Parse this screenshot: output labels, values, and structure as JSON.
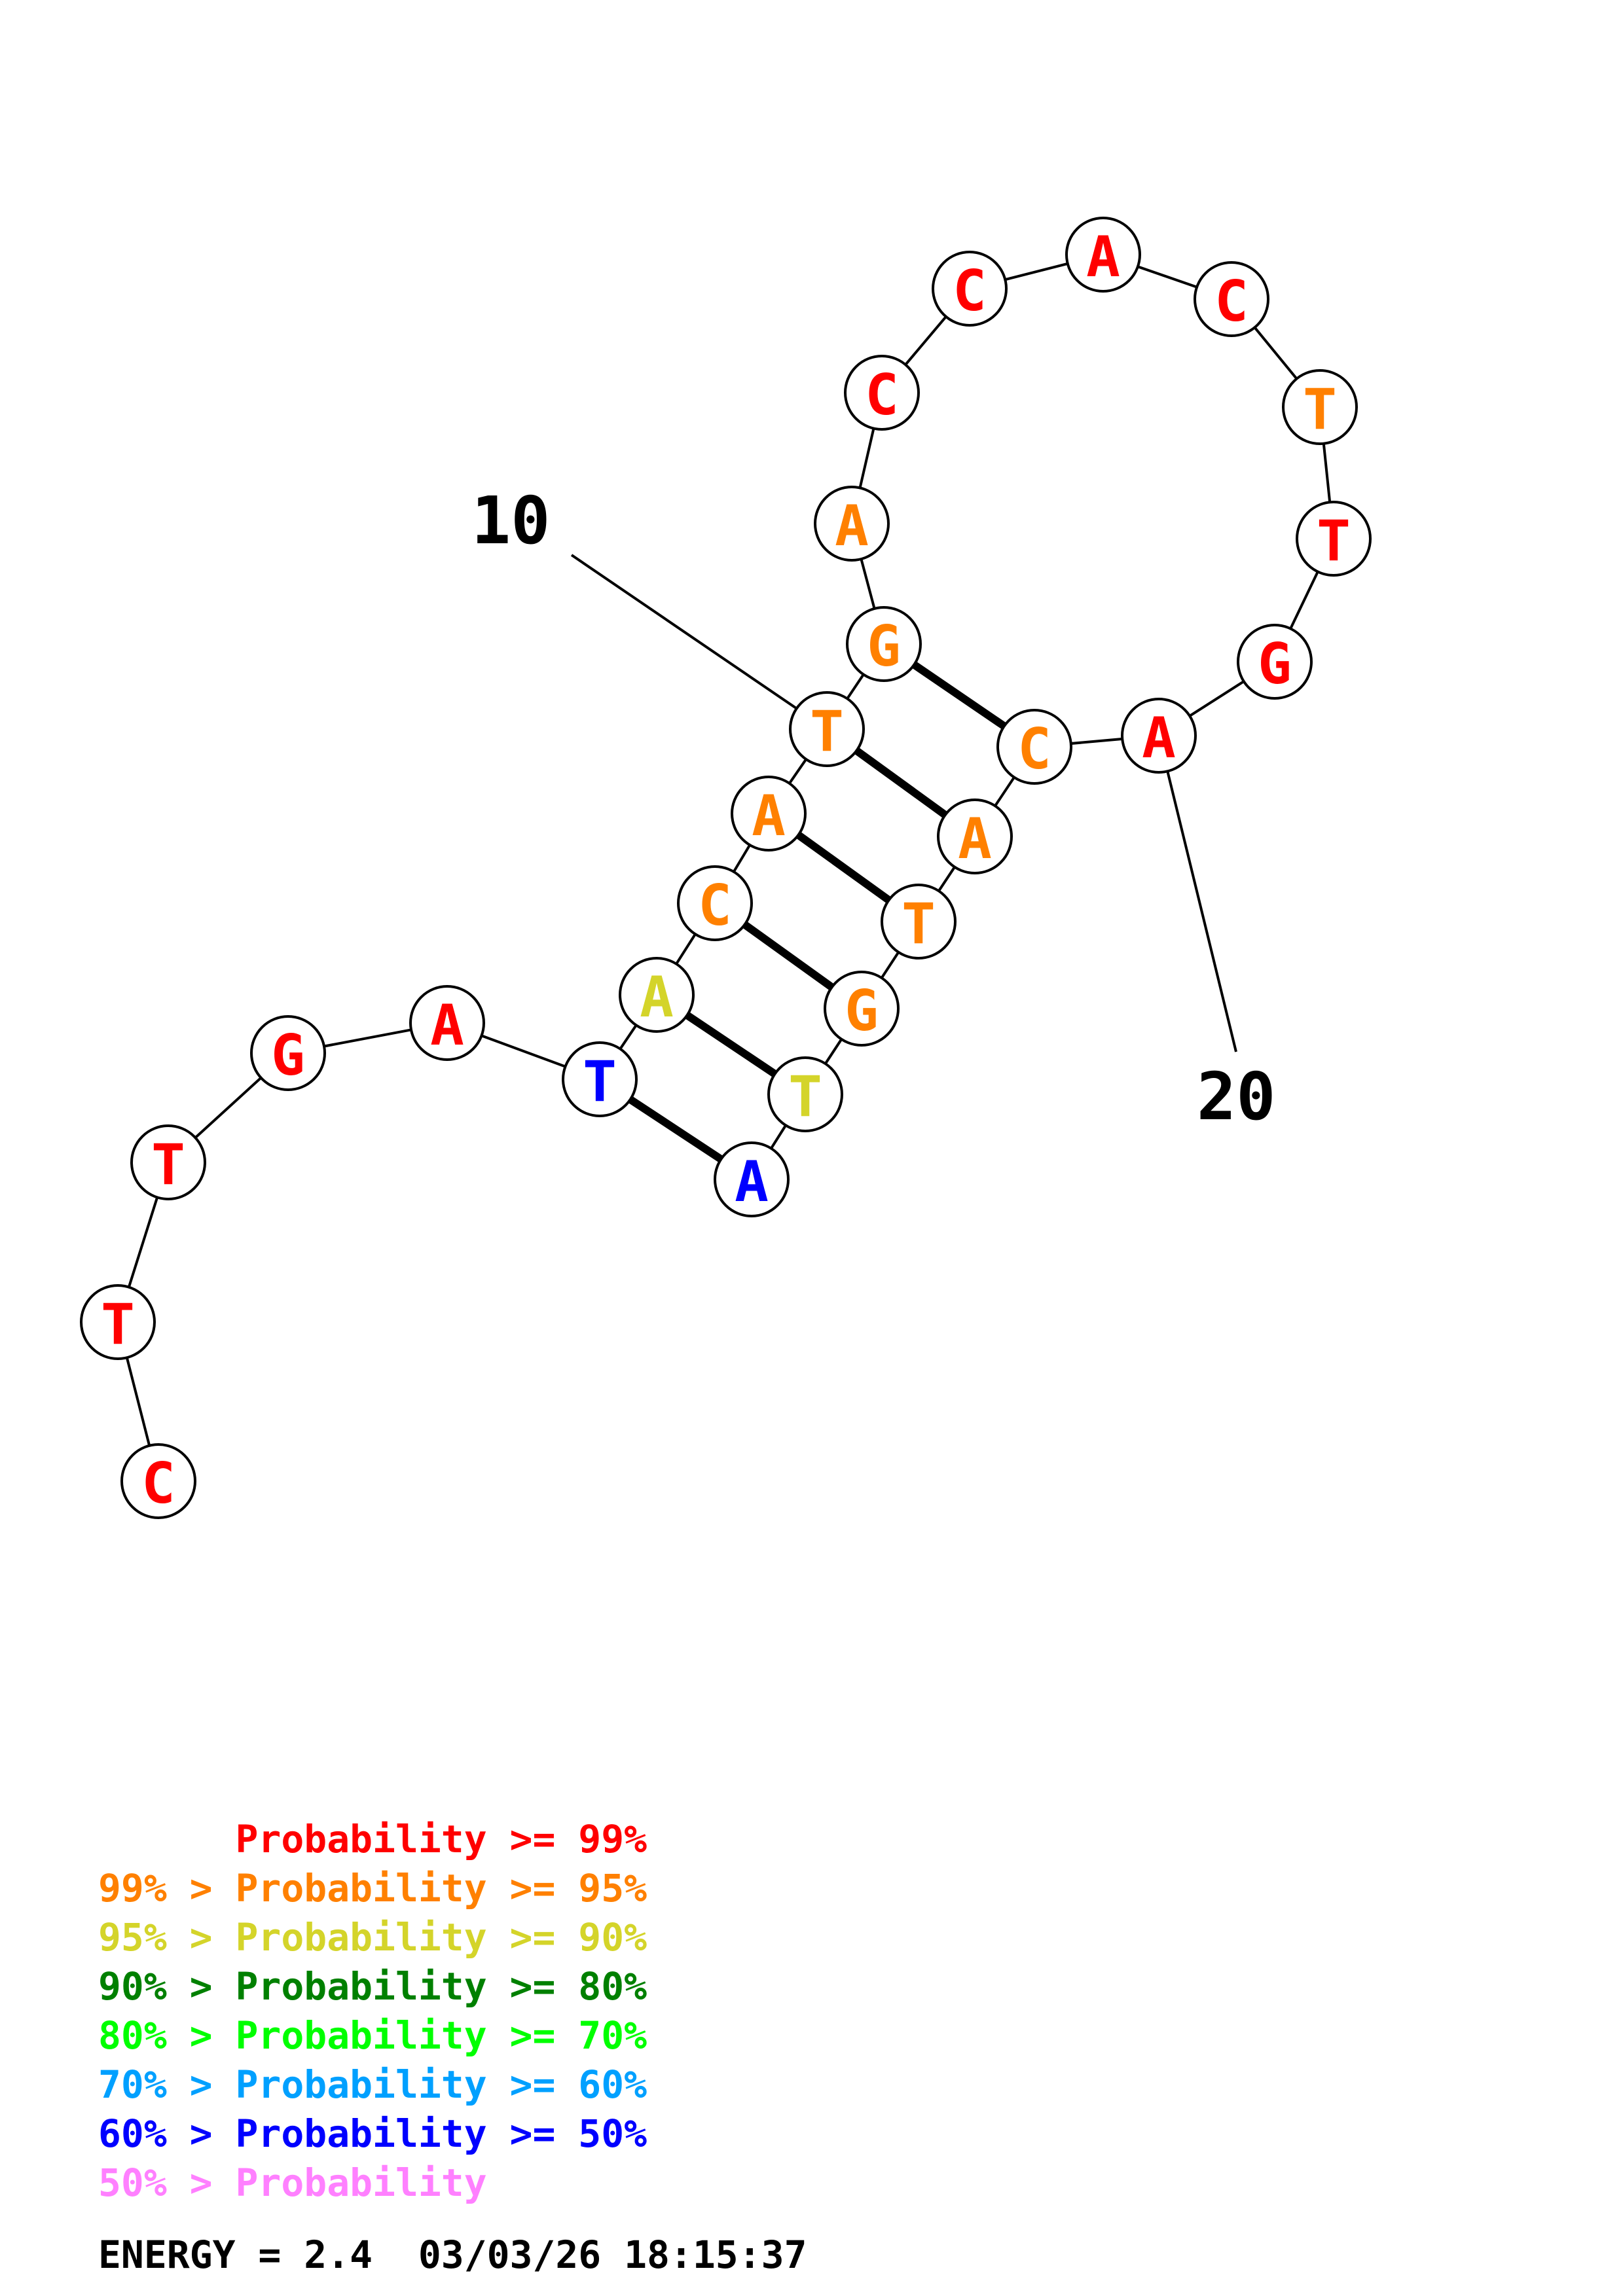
{
  "structure": {
    "sequence": [
      "C",
      "T",
      "T",
      "G",
      "A",
      "T",
      "A",
      "C",
      "A",
      "T",
      "G",
      "A",
      "C",
      "C",
      "A",
      "C",
      "T",
      "T",
      "G",
      "A",
      "C",
      "A",
      "T",
      "G",
      "T",
      "A"
    ],
    "colors": [
      "#ff0000",
      "#ff0000",
      "#ff0000",
      "#ff0000",
      "#ff0000",
      "#0000ff",
      "#d4d42a",
      "#ff8000",
      "#ff8000",
      "#ff8000",
      "#ff8000",
      "#ff8000",
      "#ff0000",
      "#ff0000",
      "#ff0000",
      "#ff0000",
      "#ff8000",
      "#ff0000",
      "#ff0000",
      "#ff0000",
      "#ff8000",
      "#ff8000",
      "#ff8000",
      "#ff8000",
      "#d4d42a",
      "#0000ff"
    ],
    "pairs": [
      [
        6,
        26
      ],
      [
        7,
        25
      ],
      [
        8,
        24
      ],
      [
        9,
        23
      ],
      [
        10,
        22
      ],
      [
        11,
        21
      ]
    ],
    "tick_marks": [
      {
        "position": 10,
        "label": "10"
      },
      {
        "position": 20,
        "label": "20"
      }
    ]
  },
  "legend": [
    {
      "text": "      Probability >= 99%",
      "color": "#ff0000"
    },
    {
      "text": "99% > Probability >= 95%",
      "color": "#ff8000"
    },
    {
      "text": "95% > Probability >= 90%",
      "color": "#d4d42a"
    },
    {
      "text": "90% > Probability >= 80%",
      "color": "#008000"
    },
    {
      "text": "80% > Probability >= 70%",
      "color": "#00ff00"
    },
    {
      "text": "70% > Probability >= 60%",
      "color": "#00a0ff"
    },
    {
      "text": "60% > Probability >= 50%",
      "color": "#0000ff"
    },
    {
      "text": "50% > Probability",
      "color": "#ff80ff"
    }
  ],
  "energy_line": "ENERGY = 2.4  03/03/26 18:15:37"
}
